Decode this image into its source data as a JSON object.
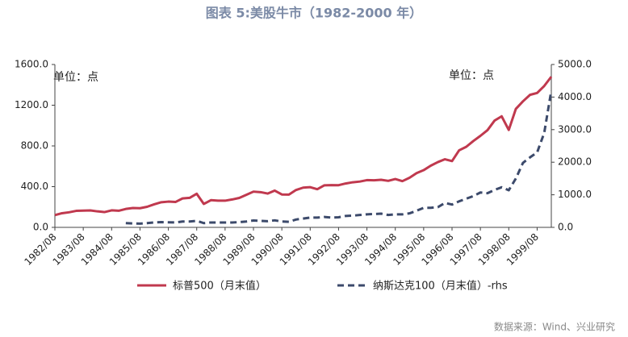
{
  "chart_data": {
    "type": "line",
    "title": "图表 5:美股牛市（1982-2000 年）",
    "y_unit_label": "单位：点",
    "y2_unit_label": "单位：点",
    "source": "数据来源：Wind、兴业研究",
    "categories": [
      "1982/08",
      null,
      null,
      null,
      "1983/08",
      null,
      null,
      null,
      "1984/08",
      null,
      null,
      null,
      "1985/08",
      null,
      null,
      null,
      "1986/08",
      null,
      null,
      null,
      "1987/08",
      null,
      null,
      null,
      "1988/08",
      null,
      null,
      null,
      "1989/08",
      null,
      null,
      null,
      "1990/08",
      null,
      null,
      null,
      "1991/08",
      null,
      null,
      null,
      "1992/08",
      null,
      null,
      null,
      "1993/08",
      null,
      null,
      null,
      "1994/08",
      null,
      null,
      null,
      "1995/08",
      null,
      null,
      null,
      "1996/08",
      null,
      null,
      null,
      "1997/08",
      null,
      null,
      null,
      "1998/08",
      null,
      null,
      null,
      "1999/08",
      null,
      null
    ],
    "series": [
      {
        "name": "标普500（月末值）",
        "color": "#c0394e",
        "dash": false,
        "values": [
          120,
          139,
          148,
          162,
          164,
          166,
          157,
          150,
          167,
          163,
          181,
          190,
          188,
          202,
          226,
          247,
          253,
          249,
          284,
          290,
          330,
          230,
          267,
          262,
          262,
          274,
          289,
          320,
          351,
          346,
          332,
          361,
          323,
          322,
          367,
          390,
          395,
          375,
          413,
          415,
          414,
          431,
          443,
          450,
          464,
          462,
          467,
          457,
          475,
          454,
          487,
          533,
          562,
          606,
          641,
          669,
          651,
          757,
          791,
          848,
          899,
          955,
          1049,
          1091,
          957,
          1164,
          1238,
          1302,
          1320,
          1389,
          1480
        ]
      },
      {
        "name": "纳斯达克100（月末值）-rhs",
        "color": "#3c4a6b",
        "dash": true,
        "axis": "y2",
        "values": [
          null,
          null,
          null,
          null,
          null,
          null,
          null,
          null,
          null,
          null,
          130,
          120,
          115,
          130,
          150,
          160,
          155,
          150,
          180,
          180,
          200,
          130,
          150,
          150,
          150,
          150,
          160,
          180,
          210,
          200,
          190,
          215,
          180,
          170,
          240,
          270,
          300,
          300,
          320,
          300,
          310,
          350,
          360,
          380,
          400,
          410,
          420,
          380,
          400,
          400,
          430,
          510,
          600,
          600,
          620,
          750,
          700,
          800,
          880,
          960,
          1070,
          1050,
          1150,
          1230,
          1140,
          1500,
          1980,
          2150,
          2300,
          2900,
          4200
        ]
      }
    ],
    "ylim": [
      0,
      1600
    ],
    "yticks": [
      {
        "value": 0,
        "label": "0.0"
      },
      {
        "value": 400,
        "label": "400.0"
      },
      {
        "value": 800,
        "label": "800.0"
      },
      {
        "value": 1200,
        "label": "1200.0"
      },
      {
        "value": 1600,
        "label": "1600.0"
      }
    ],
    "y2lim": [
      0,
      5000
    ],
    "y2ticks": [
      {
        "value": 0,
        "label": "0.0"
      },
      {
        "value": 1000,
        "label": "1000.0"
      },
      {
        "value": 2000,
        "label": "2000.0"
      },
      {
        "value": 3000,
        "label": "3000.0"
      },
      {
        "value": 4000,
        "label": "4000.0"
      },
      {
        "value": 5000,
        "label": "5000.0"
      }
    ],
    "grid": false
  }
}
